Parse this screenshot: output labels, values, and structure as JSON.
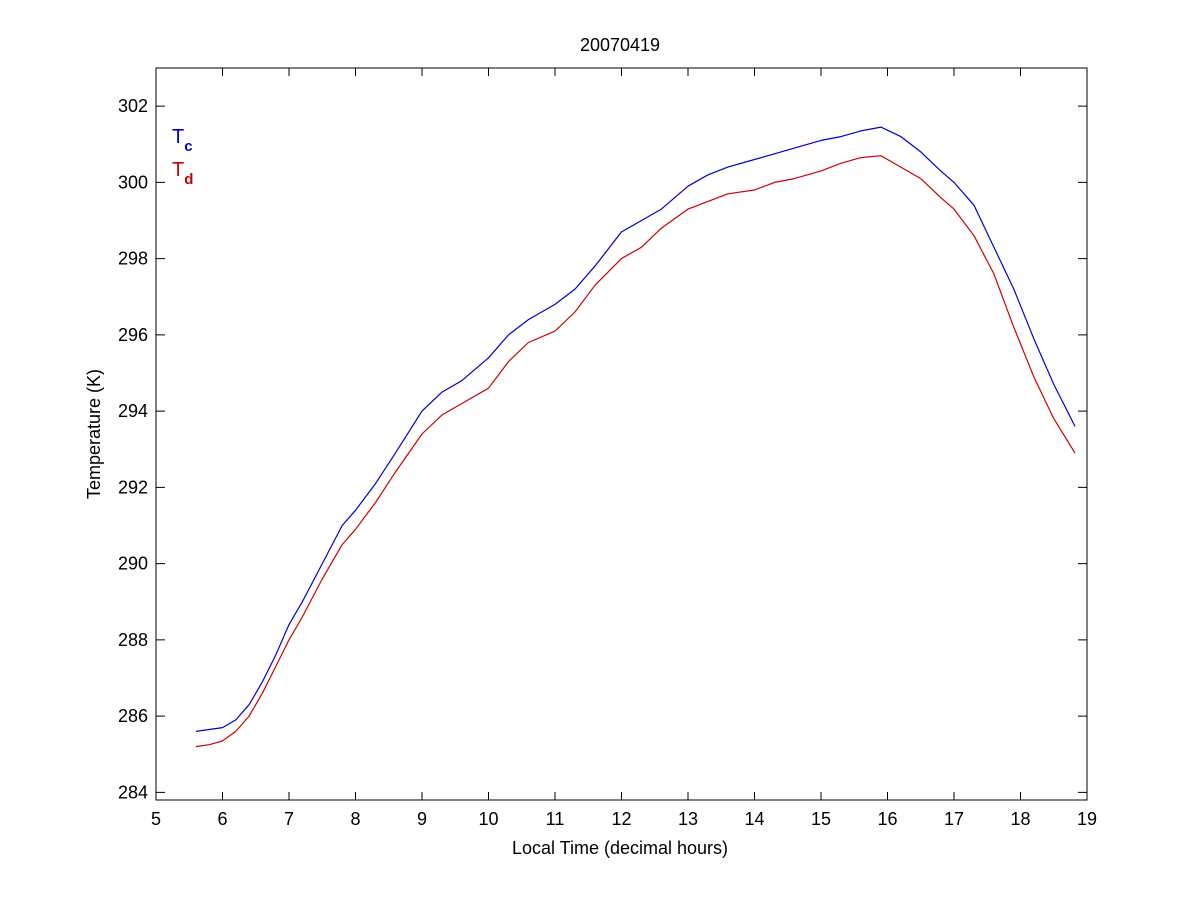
{
  "chart_data": {
    "type": "line",
    "title": "20070419",
    "xlabel": "Local Time (decimal hours)",
    "ylabel": "Temperature (K)",
    "xlim": [
      5,
      19
    ],
    "ylim": [
      283.8,
      303
    ],
    "xticks": [
      5,
      6,
      7,
      8,
      9,
      10,
      11,
      12,
      13,
      14,
      15,
      16,
      17,
      18,
      19
    ],
    "yticks": [
      284,
      286,
      288,
      290,
      292,
      294,
      296,
      298,
      300,
      302
    ],
    "grid": false,
    "legend_placement": "top-left",
    "series": [
      {
        "name": "T",
        "subscript": "c",
        "color": "#0000cc",
        "x": [
          5.6,
          5.8,
          6.0,
          6.2,
          6.4,
          6.6,
          6.8,
          7.0,
          7.2,
          7.5,
          7.8,
          8.0,
          8.3,
          8.6,
          9.0,
          9.3,
          9.6,
          10.0,
          10.3,
          10.6,
          11.0,
          11.3,
          11.6,
          12.0,
          12.3,
          12.6,
          13.0,
          13.3,
          13.6,
          14.0,
          14.3,
          14.6,
          15.0,
          15.3,
          15.6,
          15.9,
          16.2,
          16.5,
          16.8,
          17.0,
          17.3,
          17.6,
          17.9,
          18.2,
          18.5,
          18.82
        ],
        "y": [
          285.6,
          285.65,
          285.7,
          285.9,
          286.3,
          286.9,
          287.6,
          288.4,
          289.0,
          290.0,
          291.0,
          291.4,
          292.1,
          292.9,
          294.0,
          294.5,
          294.8,
          295.4,
          296.0,
          296.4,
          296.8,
          297.2,
          297.8,
          298.7,
          299.0,
          299.3,
          299.9,
          300.2,
          300.4,
          300.6,
          300.75,
          300.9,
          301.1,
          301.2,
          301.35,
          301.45,
          301.2,
          300.8,
          300.3,
          300.0,
          299.4,
          298.3,
          297.2,
          295.9,
          294.7,
          293.6
        ]
      },
      {
        "name": "T",
        "subscript": "d",
        "color": "#cc0000",
        "x": [
          5.6,
          5.8,
          6.0,
          6.2,
          6.4,
          6.6,
          6.8,
          7.0,
          7.2,
          7.5,
          7.8,
          8.0,
          8.3,
          8.6,
          9.0,
          9.3,
          9.6,
          10.0,
          10.3,
          10.6,
          11.0,
          11.3,
          11.6,
          12.0,
          12.3,
          12.6,
          13.0,
          13.3,
          13.6,
          14.0,
          14.3,
          14.6,
          15.0,
          15.3,
          15.6,
          15.9,
          16.2,
          16.5,
          16.8,
          17.0,
          17.3,
          17.6,
          17.9,
          18.2,
          18.5,
          18.82
        ],
        "y": [
          285.2,
          285.25,
          285.35,
          285.6,
          286.0,
          286.6,
          287.3,
          288.0,
          288.6,
          289.6,
          290.5,
          290.9,
          291.6,
          292.4,
          293.4,
          293.9,
          294.2,
          294.6,
          295.3,
          295.8,
          296.1,
          296.6,
          297.3,
          298.0,
          298.3,
          298.8,
          299.3,
          299.5,
          299.7,
          299.8,
          300.0,
          300.1,
          300.3,
          300.5,
          300.65,
          300.7,
          300.4,
          300.1,
          299.6,
          299.3,
          298.6,
          297.6,
          296.2,
          294.9,
          293.8,
          292.9
        ]
      }
    ]
  }
}
